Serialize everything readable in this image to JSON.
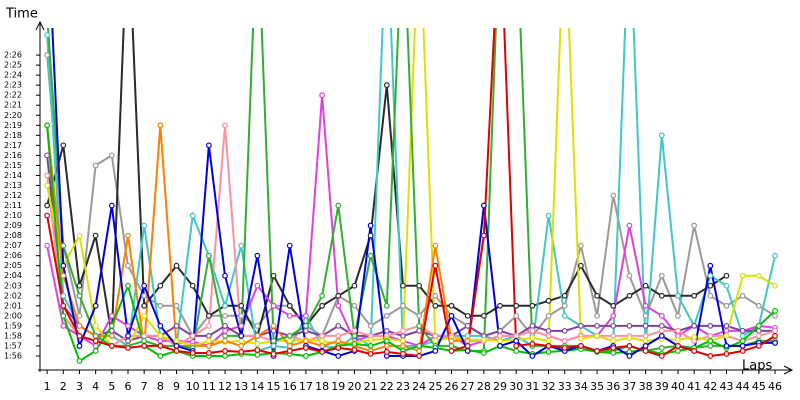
{
  "chart_data": {
    "type": "line",
    "y_label": "Time",
    "x_label": "Laps",
    "xlim": [
      0.56,
      47.05
    ],
    "ylim": [
      114.6,
      148.7
    ],
    "xticks": [
      1,
      2,
      3,
      4,
      5,
      6,
      7,
      8,
      9,
      10,
      11,
      12,
      13,
      14,
      15,
      16,
      17,
      18,
      19,
      20,
      21,
      22,
      23,
      24,
      25,
      26,
      27,
      28,
      29,
      30,
      31,
      32,
      33,
      34,
      35,
      36,
      37,
      38,
      39,
      40,
      41,
      42,
      43,
      44,
      45,
      46
    ],
    "yticks": [
      {
        "value": 116,
        "label": "1:56"
      },
      {
        "value": 117,
        "label": "1:57"
      },
      {
        "value": 118,
        "label": "1:58"
      },
      {
        "value": 119,
        "label": "1:59"
      },
      {
        "value": 120,
        "label": "2:00"
      },
      {
        "value": 121,
        "label": "2:01"
      },
      {
        "value": 122,
        "label": "2:02"
      },
      {
        "value": 123,
        "label": "2:03"
      },
      {
        "value": 124,
        "label": "2:04"
      },
      {
        "value": 125,
        "label": "2:05"
      },
      {
        "value": 126,
        "label": "2:06"
      },
      {
        "value": 127,
        "label": "2:07"
      },
      {
        "value": 128,
        "label": "2:08"
      },
      {
        "value": 129,
        "label": "2:09"
      },
      {
        "value": 130,
        "label": "2:10"
      },
      {
        "value": 131,
        "label": "2:11"
      },
      {
        "value": 132,
        "label": "2:12"
      },
      {
        "value": 133,
        "label": "2:13"
      },
      {
        "value": 134,
        "label": "2:14"
      },
      {
        "value": 135,
        "label": "2:15"
      },
      {
        "value": 136,
        "label": "2:16"
      },
      {
        "value": 137,
        "label": "2:17"
      },
      {
        "value": 138,
        "label": "2:18"
      },
      {
        "value": 139,
        "label": "2:19"
      },
      {
        "value": 140,
        "label": "2:20"
      },
      {
        "value": 141,
        "label": "2:21"
      },
      {
        "value": 142,
        "label": "2:22"
      },
      {
        "value": 143,
        "label": "2:23"
      },
      {
        "value": 144,
        "label": "2:24"
      },
      {
        "value": 145,
        "label": "2:25"
      },
      {
        "value": 146,
        "label": "2:26"
      }
    ],
    "x": [
      1,
      2,
      3,
      4,
      5,
      6,
      7,
      8,
      9,
      10,
      11,
      12,
      13,
      14,
      15,
      16,
      17,
      18,
      19,
      20,
      21,
      22,
      23,
      24,
      25,
      26,
      27,
      28,
      29,
      30,
      31,
      32,
      33,
      34,
      35,
      36,
      37,
      38,
      39,
      40,
      41,
      42,
      43,
      44,
      45,
      46
    ],
    "series": [
      {
        "color": "#9a9a9a",
        "values": [
          146,
          127,
          120,
          135,
          136,
          125,
          122,
          121,
          121,
          118,
          120,
          120,
          120,
          119,
          121,
          121,
          119,
          118,
          122,
          121,
          119,
          120,
          121,
          120,
          122,
          120,
          119,
          118,
          118.5,
          120,
          118,
          120,
          121,
          127,
          120,
          132,
          124,
          120,
          124,
          120,
          129,
          122,
          121,
          122,
          121,
          120
        ]
      },
      {
        "color": "#2a2a2a",
        "values": [
          131,
          137,
          123,
          128,
          118,
          160,
          121,
          123,
          125,
          123,
          120,
          121,
          121,
          118,
          124,
          121,
          119,
          121,
          122,
          123,
          128,
          143,
          123,
          123,
          121,
          121,
          120,
          120,
          121,
          121,
          121,
          121.5,
          122,
          125,
          122,
          121,
          122,
          123,
          122,
          122,
          122,
          123,
          124,
          null,
          null,
          null
        ]
      },
      {
        "color": "#40c8c8",
        "values": [
          148,
          122,
          119,
          118,
          118,
          117,
          129,
          118,
          117,
          130,
          126,
          121,
          127,
          116.5,
          117,
          116.8,
          120,
          117,
          116.8,
          118,
          117,
          160,
          117,
          117,
          117.5,
          118,
          118,
          118,
          117.5,
          118,
          117,
          130,
          120,
          119,
          118,
          117.5,
          160,
          117,
          138,
          122,
          119,
          124,
          123,
          118,
          119,
          126
        ]
      },
      {
        "color": "#e040e0",
        "values": [
          127,
          119,
          118,
          117,
          120,
          119,
          118,
          117.5,
          117.5,
          117.4,
          117,
          118.5,
          119,
          123,
          121,
          120,
          120,
          142,
          121,
          117.5,
          118,
          118,
          117.5,
          117,
          118,
          118,
          117,
          117.5,
          118,
          118,
          118.5,
          118,
          117.5,
          118,
          118,
          120,
          129,
          121,
          120,
          118,
          119,
          118,
          118.5,
          118.5,
          119,
          118.8
        ]
      },
      {
        "color": "#8040a0",
        "values": [
          136,
          121,
          119,
          118,
          118.5,
          117.5,
          118,
          118,
          119,
          118,
          118,
          119,
          118,
          118,
          118.5,
          118,
          118.5,
          118,
          119,
          118,
          118,
          118.5,
          118,
          118.5,
          118,
          118,
          119,
          118,
          118.5,
          118,
          119,
          118.5,
          118.5,
          119,
          119,
          119,
          119,
          119,
          119,
          118.5,
          119,
          119,
          119,
          118.5,
          118.5,
          118.5
        ]
      },
      {
        "color": "#ff90a0",
        "values": [
          134,
          120,
          118,
          117.5,
          117,
          118,
          118,
          118,
          117,
          118,
          119,
          139,
          118,
          118,
          117.5,
          118,
          117.5,
          118,
          118,
          118.5,
          118,
          118,
          118.5,
          119,
          118,
          118,
          117.5,
          117.5,
          118,
          118,
          118.5,
          118,
          117.5,
          118,
          118,
          118,
          118,
          118,
          118.5,
          118.5,
          117.5,
          118,
          118,
          117.5,
          118,
          118.5
        ]
      },
      {
        "color": "#e0e000",
        "values": [
          133,
          125,
          128,
          119,
          117,
          117,
          120,
          118,
          117.5,
          117,
          117.5,
          117.4,
          117.5,
          117.2,
          117.5,
          117.5,
          117.6,
          117.5,
          117.2,
          117.3,
          117.6,
          117.7,
          117.5,
          160,
          117.5,
          117.8,
          117.6,
          117.6,
          117.5,
          117.6,
          117.8,
          117.5,
          160,
          117.7,
          118,
          117.5,
          117.8,
          117.5,
          117.7,
          117.6,
          117.9,
          117.5,
          118,
          124,
          124,
          123
        ]
      },
      {
        "color": "#ff8000",
        "values": [
          139,
          124,
          119,
          118,
          118,
          128,
          117,
          139,
          117,
          117,
          117,
          117.5,
          117,
          118,
          119,
          117,
          117.5,
          117,
          117.5,
          117,
          116.5,
          117,
          117,
          116.5,
          127,
          117.5,
          117.5,
          128,
          null,
          null,
          null,
          null,
          null,
          null,
          null,
          null,
          null,
          null,
          null,
          null,
          null,
          null,
          null,
          null,
          null,
          null
        ]
      },
      {
        "color": "#30b030",
        "values": [
          150,
          127,
          122,
          118,
          117,
          117,
          117.5,
          117,
          117,
          116.8,
          126,
          118,
          118,
          160,
          117.5,
          118,
          119,
          122,
          131,
          118,
          126,
          121,
          160,
          119,
          117,
          117,
          116.5,
          116.5,
          160,
          160,
          117,
          117,
          117,
          117,
          116.5,
          116.5,
          117,
          116.5,
          116.8,
          117,
          116.8,
          117,
          117,
          117,
          117.5,
          117.5
        ]
      },
      {
        "color": "#00c000",
        "values": [
          139,
          120,
          115.5,
          116.5,
          119,
          123,
          117,
          116,
          116.5,
          116,
          116,
          116,
          116.2,
          116.1,
          116.3,
          116.2,
          116,
          116.4,
          117,
          117.2,
          117,
          117.5,
          116.5,
          117,
          116.8,
          116.5,
          116.6,
          116.3,
          117,
          116.5,
          116.2,
          116.4,
          116.5,
          116.7,
          116.4,
          116.3,
          116.4,
          116.6,
          116.2,
          116.5,
          116.8,
          117.5,
          116.8,
          117.5,
          119,
          120.5
        ]
      },
      {
        "color": "#0000e0",
        "values": [
          160,
          125,
          117,
          121,
          131,
          118,
          123,
          119,
          117,
          116.5,
          137,
          124,
          118,
          126,
          116,
          127,
          117,
          116.5,
          116,
          116.5,
          129,
          116,
          116,
          116,
          116.5,
          120,
          116.5,
          131,
          117,
          117.5,
          116,
          117,
          116.5,
          117,
          116.5,
          117,
          116,
          117,
          118,
          117,
          116.5,
          125,
          117,
          117,
          117.3,
          117.3
        ]
      },
      {
        "color": "#e00000",
        "values": [
          130,
          121,
          118,
          117.5,
          117,
          116.8,
          117,
          117,
          116.5,
          116.3,
          116.3,
          116.5,
          116.4,
          116.6,
          116.2,
          116.5,
          116.8,
          116.4,
          116.8,
          116.6,
          116.2,
          116.4,
          116.2,
          116,
          125,
          116.5,
          117,
          128,
          160,
          117,
          117.2,
          117,
          116.8,
          117,
          116.5,
          116.8,
          117,
          116.5,
          116,
          117,
          116.5,
          116,
          116.2,
          116.5,
          117,
          118
        ]
      }
    ]
  }
}
